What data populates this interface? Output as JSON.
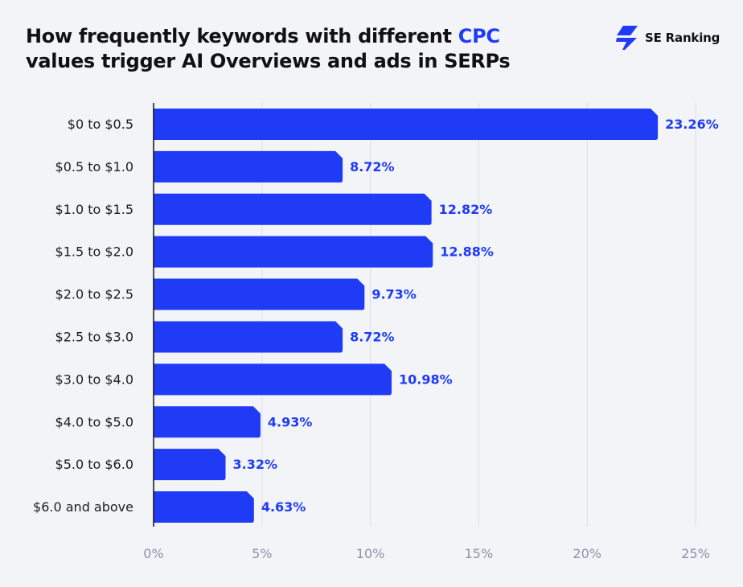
{
  "title": {
    "line1_prefix": "How frequently keywords with different",
    "accent": "CPC",
    "line2": "values trigger AI Overviews and ads in SERPs"
  },
  "brand": {
    "name": "SE Ranking",
    "logo_icon": "se-ranking-bolt-icon"
  },
  "colors": {
    "bar": "#1f3bf5",
    "label": "#1f3bf5",
    "background": "#f3f4f8",
    "grid": "#dfe2ea",
    "axis": "#111111",
    "tick": "#8a93a8"
  },
  "chart_data": {
    "type": "bar",
    "orientation": "horizontal",
    "categories": [
      "$0 to $0.5",
      "$0.5 to $1.0",
      "$1.0 to $1.5",
      "$1.5 to $2.0",
      "$2.0 to $2.5",
      "$2.5 to $3.0",
      "$3.0 to $4.0",
      "$4.0 to $5.0",
      "$5.0 to $6.0",
      "$6.0 and above"
    ],
    "values": [
      23.26,
      8.72,
      12.82,
      12.88,
      9.73,
      8.72,
      10.98,
      4.93,
      3.32,
      4.63
    ],
    "value_labels": [
      "23.26%",
      "8.72%",
      "12.82%",
      "12.88%",
      "9.73%",
      "8.72%",
      "10.98%",
      "4.93%",
      "3.32%",
      "4.63%"
    ],
    "xlim": [
      0,
      25
    ],
    "xticks": [
      0,
      5,
      10,
      15,
      20,
      25
    ],
    "xtick_labels": [
      "0%",
      "5%",
      "10%",
      "15%",
      "20%",
      "25%"
    ],
    "grid": true
  }
}
